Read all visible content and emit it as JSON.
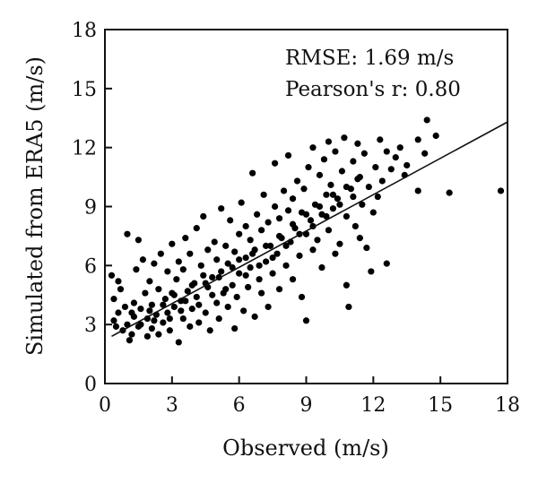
{
  "chart_data": {
    "type": "scatter",
    "xlabel": "Observed (m/s)",
    "ylabel": "Simulated from ERA5 (m/s)",
    "xlim": [
      0,
      18
    ],
    "ylim": [
      0,
      18
    ],
    "xticks": [
      "0",
      "3",
      "6",
      "9",
      "12",
      "15",
      "18"
    ],
    "yticks": [
      "0",
      "3",
      "6",
      "9",
      "12",
      "15",
      "18"
    ],
    "grid": false,
    "annotations": [
      "RMSE: 1.69 m/s",
      "Pearson's r: 0.80"
    ],
    "fit_line": {
      "x": [
        0.3,
        18.0
      ],
      "y": [
        2.4,
        13.3
      ]
    },
    "point_color": "#000000",
    "points": [
      [
        0.3,
        5.5
      ],
      [
        0.4,
        3.2
      ],
      [
        0.5,
        2.9
      ],
      [
        0.6,
        3.6
      ],
      [
        0.4,
        4.3
      ],
      [
        0.7,
        4.8
      ],
      [
        0.8,
        2.7
      ],
      [
        0.6,
        5.2
      ],
      [
        0.9,
        3.9
      ],
      [
        1.0,
        3.0
      ],
      [
        1.0,
        7.6
      ],
      [
        1.1,
        2.2
      ],
      [
        1.2,
        2.5
      ],
      [
        1.3,
        3.4
      ],
      [
        1.3,
        4.1
      ],
      [
        1.4,
        5.8
      ],
      [
        1.5,
        7.3
      ],
      [
        1.5,
        2.9
      ],
      [
        1.6,
        3.8
      ],
      [
        1.7,
        6.3
      ],
      [
        1.8,
        4.6
      ],
      [
        1.9,
        2.4
      ],
      [
        1.9,
        3.3
      ],
      [
        2.0,
        5.2
      ],
      [
        2.1,
        2.8
      ],
      [
        2.1,
        4.0
      ],
      [
        2.2,
        6.1
      ],
      [
        2.3,
        3.5
      ],
      [
        2.4,
        2.5
      ],
      [
        2.4,
        4.8
      ],
      [
        2.5,
        6.6
      ],
      [
        2.6,
        3.1
      ],
      [
        2.7,
        4.3
      ],
      [
        2.8,
        5.7
      ],
      [
        2.8,
        3.6
      ],
      [
        2.9,
        2.7
      ],
      [
        3.0,
        4.6
      ],
      [
        3.0,
        7.1
      ],
      [
        3.1,
        3.9
      ],
      [
        3.2,
        5.3
      ],
      [
        3.3,
        2.1
      ],
      [
        3.3,
        6.2
      ],
      [
        3.4,
        4.2
      ],
      [
        3.5,
        3.3
      ],
      [
        3.5,
        5.8
      ],
      [
        3.6,
        7.4
      ],
      [
        3.7,
        4.7
      ],
      [
        3.8,
        2.9
      ],
      [
        3.8,
        6.6
      ],
      [
        3.9,
        3.8
      ],
      [
        4.0,
        5.1
      ],
      [
        4.1,
        7.9
      ],
      [
        4.1,
        4.4
      ],
      [
        4.2,
        3.1
      ],
      [
        4.3,
        6.0
      ],
      [
        4.4,
        5.5
      ],
      [
        4.4,
        8.5
      ],
      [
        4.5,
        3.6
      ],
      [
        4.6,
        4.9
      ],
      [
        4.6,
        6.8
      ],
      [
        4.7,
        2.7
      ],
      [
        4.8,
        5.4
      ],
      [
        4.9,
        7.2
      ],
      [
        5.0,
        4.1
      ],
      [
        5.0,
        6.3
      ],
      [
        5.1,
        3.3
      ],
      [
        5.2,
        8.9
      ],
      [
        5.2,
        5.7
      ],
      [
        5.3,
        4.6
      ],
      [
        5.4,
        7.0
      ],
      [
        5.5,
        3.9
      ],
      [
        5.5,
        6.1
      ],
      [
        5.6,
        8.3
      ],
      [
        5.7,
        5.0
      ],
      [
        5.8,
        2.8
      ],
      [
        5.8,
        6.7
      ],
      [
        5.9,
        4.4
      ],
      [
        6.0,
        7.6
      ],
      [
        6.0,
        5.6
      ],
      [
        6.1,
        9.2
      ],
      [
        6.2,
        3.7
      ],
      [
        6.3,
        6.4
      ],
      [
        6.3,
        8.0
      ],
      [
        6.4,
        4.9
      ],
      [
        6.5,
        5.9
      ],
      [
        6.5,
        7.3
      ],
      [
        6.6,
        10.7
      ],
      [
        6.7,
        3.4
      ],
      [
        6.7,
        6.8
      ],
      [
        6.8,
        8.6
      ],
      [
        6.9,
        5.3
      ],
      [
        7.0,
        7.8
      ],
      [
        7.0,
        4.6
      ],
      [
        7.1,
        9.6
      ],
      [
        7.2,
        6.2
      ],
      [
        7.3,
        8.2
      ],
      [
        7.3,
        3.9
      ],
      [
        7.4,
        7.0
      ],
      [
        7.5,
        5.6
      ],
      [
        7.6,
        9.0
      ],
      [
        7.6,
        11.2
      ],
      [
        7.7,
        6.6
      ],
      [
        7.8,
        8.4
      ],
      [
        7.8,
        4.8
      ],
      [
        7.9,
        7.4
      ],
      [
        8.0,
        9.8
      ],
      [
        8.1,
        6.0
      ],
      [
        8.2,
        8.8
      ],
      [
        8.2,
        11.6
      ],
      [
        8.3,
        7.2
      ],
      [
        8.4,
        5.3
      ],
      [
        8.4,
        9.4
      ],
      [
        8.5,
        7.9
      ],
      [
        8.6,
        10.3
      ],
      [
        8.7,
        6.5
      ],
      [
        8.8,
        8.7
      ],
      [
        8.8,
        4.4
      ],
      [
        8.9,
        9.9
      ],
      [
        9.0,
        7.6
      ],
      [
        9.0,
        3.2
      ],
      [
        9.1,
        11.0
      ],
      [
        9.2,
        8.3
      ],
      [
        9.3,
        6.8
      ],
      [
        9.3,
        12.0
      ],
      [
        9.4,
        9.1
      ],
      [
        9.5,
        7.3
      ],
      [
        9.6,
        10.6
      ],
      [
        9.7,
        8.6
      ],
      [
        9.7,
        5.9
      ],
      [
        9.8,
        11.4
      ],
      [
        9.9,
        9.6
      ],
      [
        10.0,
        7.8
      ],
      [
        10.0,
        12.3
      ],
      [
        10.1,
        10.1
      ],
      [
        10.2,
        8.9
      ],
      [
        10.3,
        6.6
      ],
      [
        10.3,
        11.8
      ],
      [
        10.4,
        9.4
      ],
      [
        10.5,
        7.1
      ],
      [
        10.6,
        10.8
      ],
      [
        10.7,
        12.5
      ],
      [
        10.8,
        8.5
      ],
      [
        10.8,
        5.0
      ],
      [
        10.9,
        3.9
      ],
      [
        11.0,
        9.9
      ],
      [
        11.1,
        11.3
      ],
      [
        11.2,
        8.0
      ],
      [
        11.3,
        12.2
      ],
      [
        11.3,
        10.4
      ],
      [
        11.4,
        7.4
      ],
      [
        11.5,
        9.1
      ],
      [
        11.6,
        11.7
      ],
      [
        11.7,
        6.9
      ],
      [
        11.8,
        10.0
      ],
      [
        11.9,
        5.7
      ],
      [
        12.0,
        8.7
      ],
      [
        12.1,
        11.0
      ],
      [
        12.2,
        9.5
      ],
      [
        12.3,
        12.4
      ],
      [
        12.4,
        10.3
      ],
      [
        12.6,
        6.1
      ],
      [
        12.6,
        11.8
      ],
      [
        12.8,
        10.9
      ],
      [
        13.0,
        11.5
      ],
      [
        13.2,
        12.0
      ],
      [
        13.4,
        10.6
      ],
      [
        13.5,
        11.1
      ],
      [
        14.0,
        12.4
      ],
      [
        14.0,
        9.8
      ],
      [
        14.3,
        11.7
      ],
      [
        14.4,
        13.4
      ],
      [
        14.8,
        12.6
      ],
      [
        15.4,
        9.7
      ],
      [
        17.7,
        9.8
      ],
      [
        1.2,
        3.6
      ],
      [
        1.6,
        3.0
      ],
      [
        2.0,
        3.7
      ],
      [
        2.2,
        3.2
      ],
      [
        2.6,
        4.0
      ],
      [
        2.9,
        3.3
      ],
      [
        3.1,
        4.5
      ],
      [
        3.4,
        3.7
      ],
      [
        3.6,
        4.2
      ],
      [
        3.9,
        5.0
      ],
      [
        4.2,
        4.0
      ],
      [
        4.5,
        5.1
      ],
      [
        4.8,
        4.5
      ],
      [
        5.1,
        5.4
      ],
      [
        5.4,
        4.8
      ],
      [
        5.7,
        5.9
      ],
      [
        6.0,
        6.3
      ],
      [
        6.3,
        5.5
      ],
      [
        6.6,
        6.6
      ],
      [
        6.9,
        6.0
      ],
      [
        7.2,
        7.0
      ],
      [
        7.5,
        6.4
      ],
      [
        7.8,
        7.5
      ],
      [
        8.1,
        7.0
      ],
      [
        8.4,
        8.1
      ],
      [
        8.7,
        7.6
      ],
      [
        9.0,
        8.6
      ],
      [
        9.3,
        8.0
      ],
      [
        9.6,
        9.0
      ],
      [
        9.9,
        8.5
      ],
      [
        10.2,
        9.6
      ],
      [
        10.5,
        9.1
      ],
      [
        10.8,
        10.0
      ],
      [
        11.1,
        9.5
      ],
      [
        11.4,
        10.5
      ]
    ]
  }
}
